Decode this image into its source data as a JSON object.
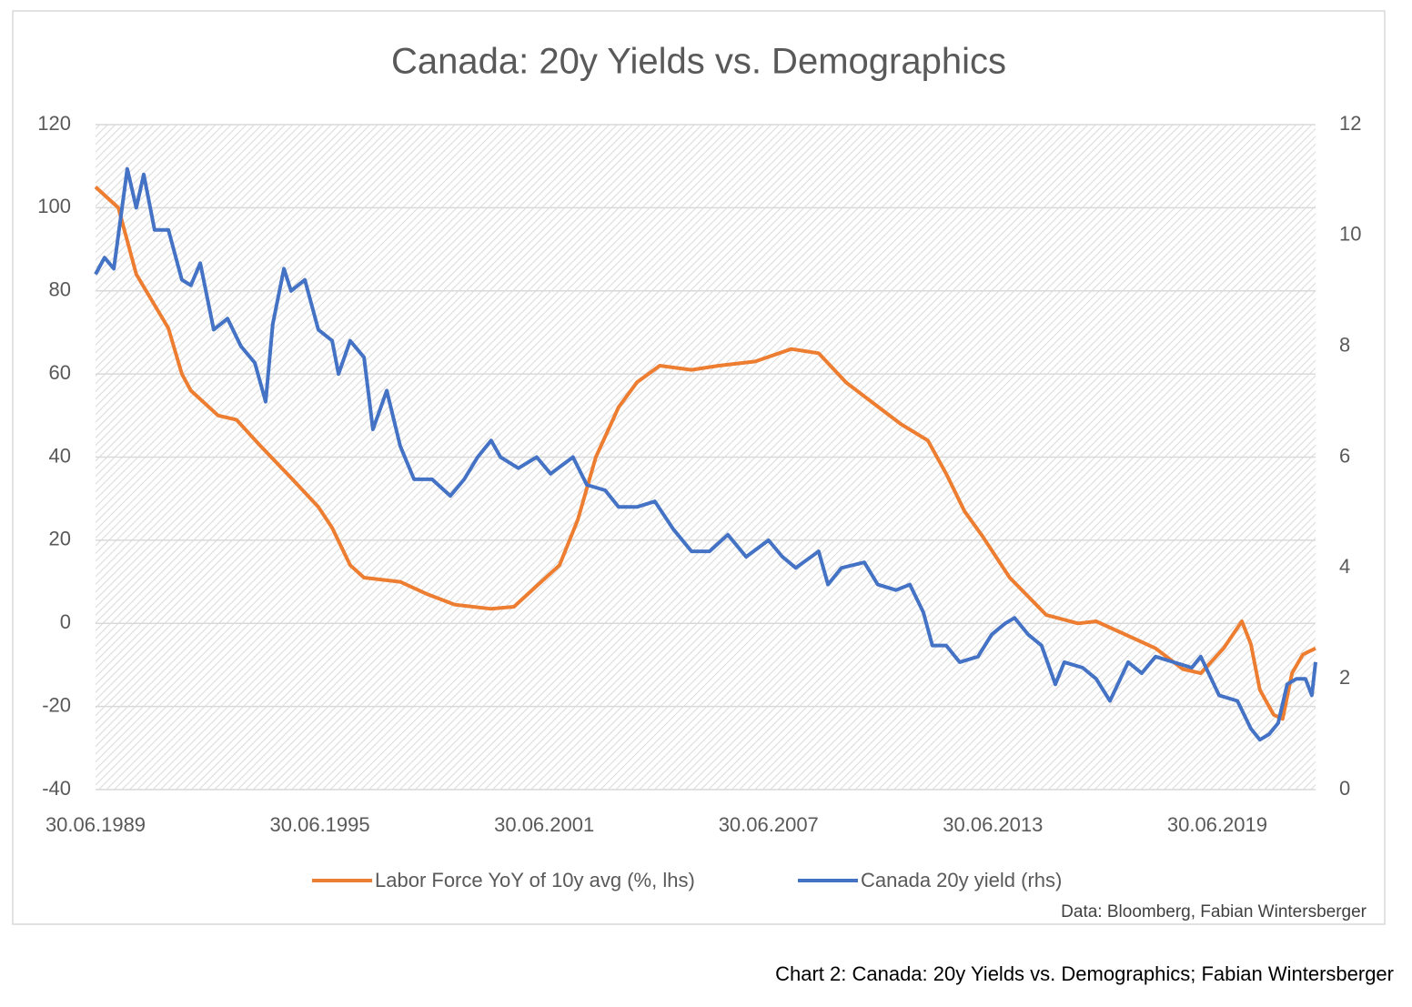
{
  "chart_data": {
    "type": "line",
    "title": "Canada: 20y Yields vs. Demographics",
    "source": "Data: Bloomberg, Fabian Wintersberger",
    "legend": "bottom",
    "grid": true,
    "xlim": [
      1989.5,
      2022.13
    ],
    "xticks": [
      {
        "value": 1989.5,
        "label": "30.06.1989"
      },
      {
        "value": 1995.5,
        "label": "30.06.1995"
      },
      {
        "value": 2001.5,
        "label": "30.06.2001"
      },
      {
        "value": 2007.5,
        "label": "30.06.2007"
      },
      {
        "value": 2013.5,
        "label": "30.06.2013"
      },
      {
        "value": 2019.5,
        "label": "30.06.2019"
      }
    ],
    "ylim": [
      -40,
      120
    ],
    "yticks": [
      -40,
      -20,
      0,
      20,
      40,
      60,
      80,
      100,
      120
    ],
    "y2lim": [
      0,
      12
    ],
    "y2ticks": [
      0,
      2,
      4,
      6,
      8,
      10,
      12
    ],
    "series": [
      {
        "name": "Labor Force YoY of 10y avg (%, lhs)",
        "color": "#ED7D31",
        "axis": "y",
        "x": [
          1989.5,
          1990.11,
          1990.59,
          1991.45,
          1991.81,
          1992.05,
          1992.78,
          1993.27,
          1993.88,
          1994.73,
          1995.46,
          1995.83,
          1996.31,
          1996.68,
          1997.65,
          1998.38,
          1999.11,
          2000.08,
          2000.69,
          2001.3,
          2001.91,
          2002.4,
          2002.88,
          2003.49,
          2003.98,
          2004.59,
          2005.44,
          2006.17,
          2007.14,
          2008.11,
          2008.84,
          2009.57,
          2010.3,
          2011.03,
          2011.76,
          2012.25,
          2012.74,
          2013.22,
          2013.95,
          2014.93,
          2015.78,
          2016.26,
          2017.12,
          2017.85,
          2018.58,
          2019.06,
          2019.67,
          2020.16,
          2020.4,
          2020.64,
          2021.01,
          2021.25,
          2021.5,
          2021.79,
          2022.13
        ],
        "values": [
          105,
          100,
          84,
          71,
          60,
          56,
          50,
          49,
          43,
          35,
          28,
          23,
          14,
          11,
          10,
          7,
          4.5,
          3.5,
          4,
          9,
          14,
          25,
          40,
          52,
          58,
          62,
          61,
          62,
          63,
          66,
          65,
          58,
          53,
          48,
          44,
          36,
          27,
          21,
          11,
          2,
          0,
          0.5,
          -3,
          -6,
          -11,
          -12,
          -6,
          0.5,
          -5,
          -16,
          -22,
          -23,
          -12,
          -7.5,
          -6
        ]
      },
      {
        "name": "Canada 20y yield (rhs)",
        "color": "#4472C4",
        "axis": "y2",
        "x": [
          1989.5,
          1989.74,
          1989.99,
          1990.35,
          1990.59,
          1990.79,
          1991.08,
          1991.45,
          1991.81,
          1992.05,
          1992.3,
          1992.66,
          1993.03,
          1993.39,
          1993.76,
          1994.05,
          1994.24,
          1994.54,
          1994.73,
          1995.1,
          1995.46,
          1995.83,
          1996.0,
          1996.31,
          1996.68,
          1996.92,
          1997.29,
          1997.65,
          1998.02,
          1998.5,
          1998.99,
          1999.36,
          1999.72,
          2000.08,
          2000.33,
          2000.81,
          2001.3,
          2001.67,
          2002.27,
          2002.64,
          2003.13,
          2003.49,
          2003.98,
          2004.46,
          2004.95,
          2005.44,
          2005.92,
          2006.41,
          2006.9,
          2007.5,
          2007.87,
          2008.23,
          2008.84,
          2009.09,
          2009.45,
          2010.06,
          2010.42,
          2010.91,
          2011.28,
          2011.64,
          2011.88,
          2012.25,
          2012.61,
          2013.1,
          2013.47,
          2013.83,
          2014.08,
          2014.44,
          2014.8,
          2015.17,
          2015.41,
          2015.9,
          2016.26,
          2016.63,
          2017.12,
          2017.48,
          2017.85,
          2018.33,
          2018.82,
          2019.06,
          2019.55,
          2020.04,
          2020.4,
          2020.64,
          2020.89,
          2021.13,
          2021.37,
          2021.62,
          2021.86,
          2022.03,
          2022.13
        ],
        "values": [
          9.3,
          9.6,
          9.4,
          11.2,
          10.5,
          11.1,
          10.1,
          10.1,
          9.2,
          9.1,
          9.5,
          8.3,
          8.5,
          8.0,
          7.7,
          7.0,
          8.4,
          9.4,
          9.0,
          9.2,
          8.3,
          8.1,
          7.5,
          8.1,
          7.8,
          6.5,
          7.2,
          6.2,
          5.6,
          5.6,
          5.3,
          5.6,
          6.0,
          6.3,
          6.0,
          5.8,
          6.0,
          5.7,
          6.0,
          5.5,
          5.4,
          5.1,
          5.1,
          5.2,
          4.7,
          4.3,
          4.3,
          4.6,
          4.2,
          4.5,
          4.2,
          4.0,
          4.3,
          3.7,
          4.0,
          4.1,
          3.7,
          3.6,
          3.7,
          3.2,
          2.6,
          2.6,
          2.3,
          2.4,
          2.8,
          3.0,
          3.1,
          2.8,
          2.6,
          1.9,
          2.3,
          2.2,
          2.0,
          1.6,
          2.3,
          2.1,
          2.4,
          2.3,
          2.2,
          2.4,
          1.7,
          1.6,
          1.1,
          0.9,
          1.0,
          1.2,
          1.9,
          2.0,
          2.0,
          1.7,
          2.3
        ]
      }
    ]
  },
  "caption": "Chart 2: Canada: 20y Yields vs. Demographics; Fabian Wintersberger"
}
